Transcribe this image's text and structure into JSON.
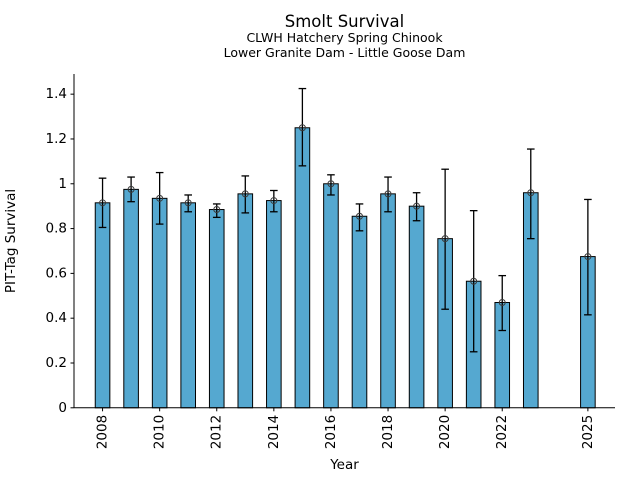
{
  "page": {
    "background": "#ffffff"
  },
  "chart_data": {
    "type": "bar",
    "title": "Smolt Survival",
    "subtitle1": "CLWH Hatchery Spring Chinook",
    "subtitle2": "Lower Granite Dam - Little Goose Dam",
    "xlabel": "Year",
    "ylabel": "PIT-Tag Survival",
    "xlim": [
      2007.0,
      2025.95
    ],
    "ylim": [
      0,
      1.49
    ],
    "grid": false,
    "legend": "none",
    "bar_color": "#55a8d0",
    "bar_edge_color": "#000000",
    "error_color": "#000000",
    "marker": "open-circle",
    "yticks": [
      0,
      0.2,
      0.4,
      0.6,
      0.8,
      1,
      1.2,
      1.4
    ],
    "ytick_labels": [
      "0",
      "0.2",
      "0.4",
      "0.6",
      "0.8",
      "1",
      "1.2",
      "1.4"
    ],
    "xticks": [
      2008,
      2010,
      2012,
      2014,
      2016,
      2018,
      2020,
      2022,
      2025
    ],
    "xtick_labels": [
      "2008",
      "2010",
      "2012",
      "2014",
      "2016",
      "2018",
      "2020",
      "2022",
      "2025"
    ],
    "series": [
      {
        "name": "PIT-Tag Survival",
        "x": [
          2008,
          2009,
          2010,
          2011,
          2012,
          2013,
          2014,
          2015,
          2016,
          2017,
          2018,
          2019,
          2020,
          2021,
          2022,
          2023,
          2025
        ],
        "values": [
          0.915,
          0.975,
          0.935,
          0.915,
          0.885,
          0.955,
          0.925,
          1.25,
          1.0,
          0.855,
          0.955,
          0.9,
          0.755,
          0.565,
          0.47,
          0.96,
          0.675
        ],
        "ci_low": [
          0.805,
          0.92,
          0.82,
          0.875,
          0.85,
          0.87,
          0.875,
          1.08,
          0.95,
          0.79,
          0.875,
          0.835,
          0.44,
          0.25,
          0.345,
          0.755,
          0.415
        ],
        "ci_high": [
          1.025,
          1.03,
          1.05,
          0.95,
          0.91,
          1.035,
          0.97,
          1.425,
          1.04,
          0.91,
          1.03,
          0.96,
          1.065,
          0.88,
          0.59,
          1.155,
          0.93
        ]
      }
    ]
  }
}
